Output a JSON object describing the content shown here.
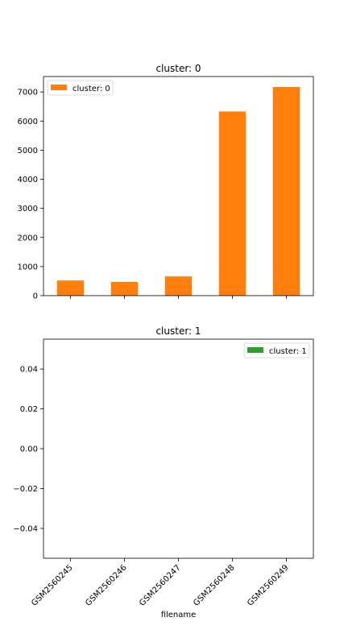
{
  "chart_data": [
    {
      "type": "bar",
      "title": "cluster: 0",
      "xlabel": "",
      "ylabel": "",
      "categories": [
        "GSM2560245",
        "GSM2560246",
        "GSM2560247",
        "GSM2560248",
        "GSM2560249"
      ],
      "series": [
        {
          "name": "cluster: 0",
          "color": "#ff7f0e",
          "values": [
            520,
            470,
            660,
            6330,
            7170
          ]
        }
      ],
      "ylim": [
        0,
        7530
      ],
      "yticks": [
        0,
        1000,
        2000,
        3000,
        4000,
        5000,
        6000,
        7000
      ],
      "ytick_labels": [
        "0",
        "1000",
        "2000",
        "3000",
        "4000",
        "5000",
        "6000",
        "7000"
      ],
      "legend": "top-left",
      "grid": false
    },
    {
      "type": "bar",
      "title": "cluster: 1",
      "xlabel": "filename",
      "ylabel": "",
      "categories": [
        "GSM2560245",
        "GSM2560246",
        "GSM2560247",
        "GSM2560248",
        "GSM2560249"
      ],
      "series": [
        {
          "name": "cluster: 1",
          "color": "#2ca02c",
          "values": [
            0,
            0,
            0,
            0,
            0
          ]
        }
      ],
      "ylim": [
        -0.055,
        0.055
      ],
      "yticks": [
        -0.04,
        -0.02,
        0.0,
        0.02,
        0.04
      ],
      "ytick_labels": [
        "−0.04",
        "−0.02",
        "0.00",
        "0.02",
        "0.04"
      ],
      "legend": "top-right",
      "grid": false
    }
  ]
}
